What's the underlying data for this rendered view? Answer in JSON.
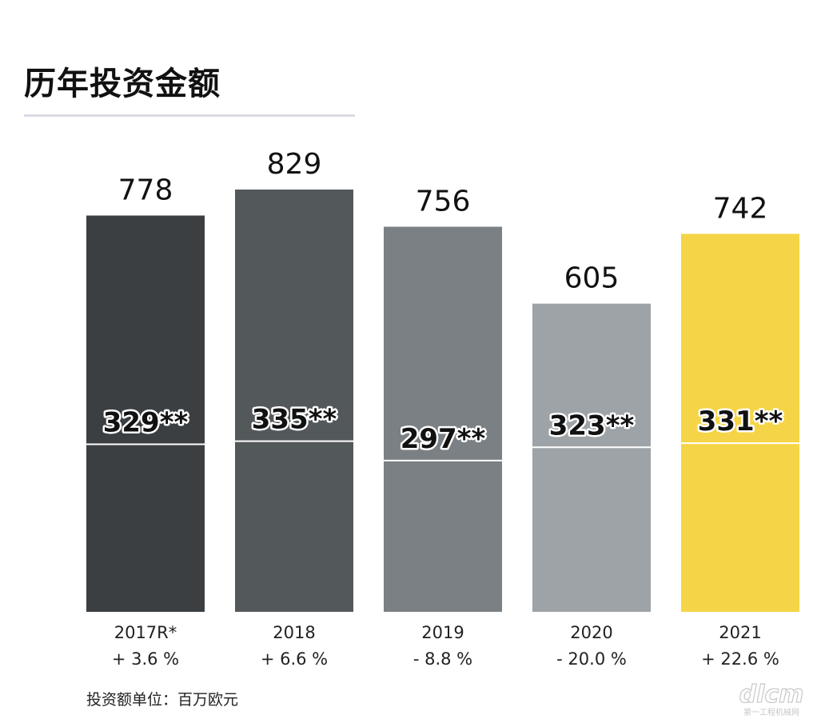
{
  "title": "历年投资金额",
  "unit_note": "投资额单位：百万欧元",
  "watermark_text": "dlcm 第一工程机械网",
  "chart_data": {
    "type": "bar",
    "title": "历年投资金额",
    "xlabel": "",
    "ylabel": "",
    "ylim": [
      0,
      830
    ],
    "grid": false,
    "categories": [
      "2017R*",
      "2018",
      "2019",
      "2020",
      "2021"
    ],
    "values": [
      778,
      829,
      756,
      605,
      742
    ],
    "value_labels": [
      "778",
      "829",
      "756",
      "605",
      "742"
    ],
    "sub_values": [
      329,
      335,
      297,
      323,
      331
    ],
    "sub_labels": [
      "329**",
      "335**",
      "297**",
      "323**",
      "331**"
    ],
    "growth_labels": [
      "+ 3.6 %",
      "+ 6.6 %",
      "- 8.8 %",
      "- 20.0 %",
      "+ 22.6 %"
    ],
    "colors": [
      "#3c3f42",
      "#53585b",
      "#7a8084",
      "#9ea3a7",
      "#f5d547"
    ]
  }
}
